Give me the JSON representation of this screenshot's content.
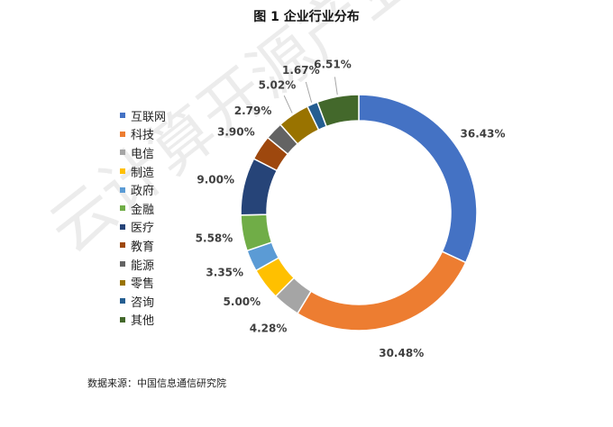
{
  "chart_data": {
    "type": "pie",
    "title": "图 1 企业行业分布",
    "categories": [
      "互联网",
      "科技",
      "电信",
      "制造",
      "政府",
      "金融",
      "医疗",
      "教育",
      "能源",
      "零售",
      "咨询",
      "其他"
    ],
    "values": [
      36.43,
      30.48,
      4.28,
      5.0,
      3.35,
      5.58,
      9.0,
      3.9,
      2.79,
      5.02,
      1.67,
      6.51
    ],
    "labels": [
      "36.43%",
      "30.48%",
      "4.28%",
      "5.00%",
      "3.35%",
      "5.58%",
      "9.00%",
      "3.90%",
      "2.79%",
      "5.02%",
      "1.67%",
      "6.51%"
    ],
    "colors": [
      "#4472C4",
      "#ED7D31",
      "#A5A5A5",
      "#FFC000",
      "#5B9BD5",
      "#70AD47",
      "#264478",
      "#9E480E",
      "#636363",
      "#997300",
      "#255E91",
      "#43682B"
    ],
    "donut": true,
    "legend_position": "left"
  },
  "source_note": "数据来源：中国信息通信研究院",
  "watermark": "云计算开源产业"
}
